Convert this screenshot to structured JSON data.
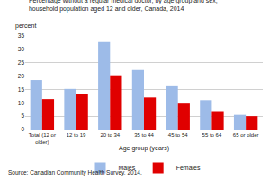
{
  "chart_data": {
    "type": "bar",
    "title": "Percentage without a regular medical doctor, by age group and sex, household population aged 12 and older, Canada, 2014",
    "y_label": "percent",
    "x_label": "Age group (years)",
    "categories": [
      "Total (12 or older)",
      "12 to 19",
      "20 to 34",
      "35 to 44",
      "45 to 54",
      "55 to 64",
      "65 or older"
    ],
    "series": [
      {
        "name": "Males",
        "color": "#9dbbe8",
        "values": [
          18.5,
          15.2,
          32.7,
          22.3,
          16.2,
          11.0,
          5.5
        ]
      },
      {
        "name": "Females",
        "color": "#e00000",
        "values": [
          11.4,
          13.2,
          20.3,
          12.0,
          9.7,
          6.9,
          5.0
        ]
      }
    ],
    "ylim": [
      0,
      35
    ],
    "yticks": [
      0,
      5,
      10,
      15,
      20,
      25,
      30,
      35
    ],
    "grid": true,
    "legend": "bottom",
    "annotations": [
      "Source: Canadian Community Health Survey, 2014."
    ]
  }
}
